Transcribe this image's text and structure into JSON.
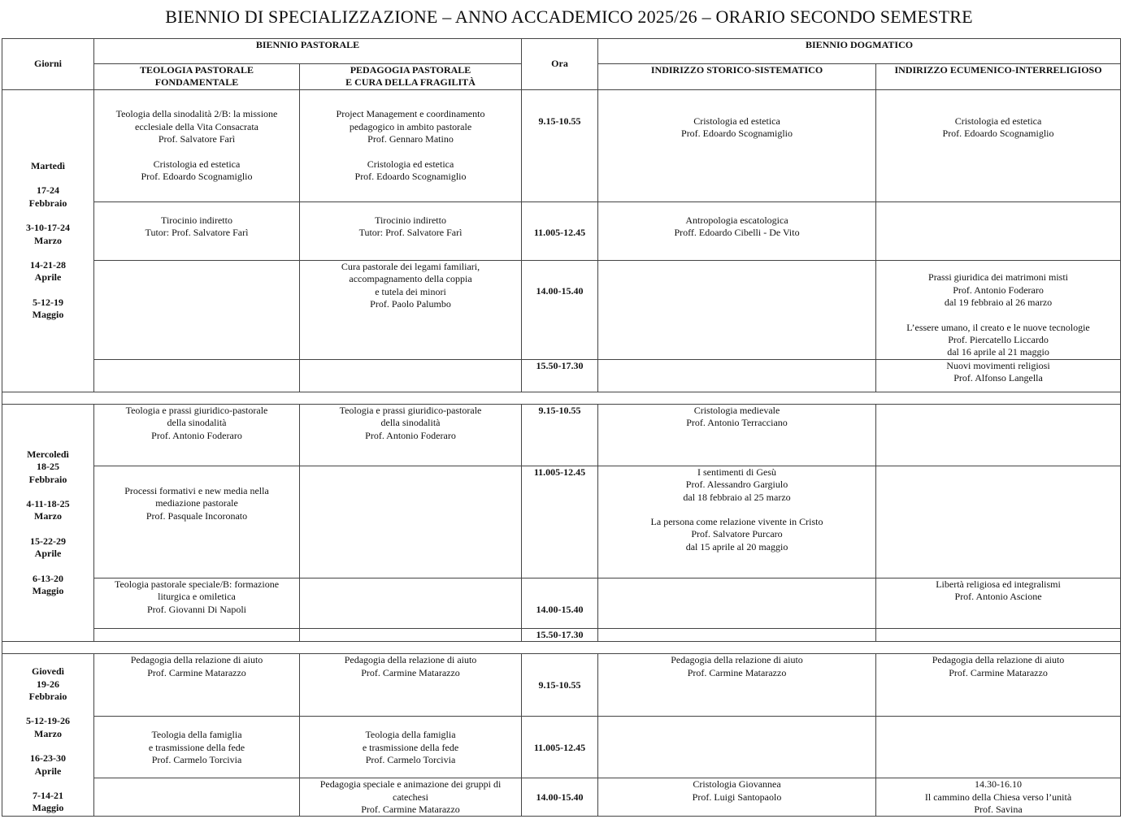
{
  "title": "BIENNIO DI SPECIALIZZAZIONE – ANNO ACCADEMICO 2025/26 – ORARIO SECONDO SEMESTRE",
  "header": {
    "giorni": "Giorni",
    "ora": "Ora",
    "pastorale": "BIENNIO PASTORALE",
    "dogmatico": "BIENNIO DOGMATICO",
    "col1": [
      "TEOLOGIA PASTORALE",
      "FONDAMENTALE"
    ],
    "col2": [
      "PEDAGOGIA PASTORALE",
      "E CURA DELLA FRAGILITÀ"
    ],
    "col3": "INDIRIZZO STORICO-SISTEMATICO",
    "col4": "INDIRIZZO ECUMENICO-INTERRELIGIOSO"
  },
  "days": {
    "martedi": [
      "Martedì",
      "",
      "17-24",
      "Febbraio",
      "",
      "3-10-17-24",
      "Marzo",
      "",
      "14-21-28",
      "Aprile",
      "",
      "5-12-19",
      "Maggio"
    ],
    "mercoledi": [
      "Mercoledì",
      "18-25",
      "Febbraio",
      "",
      "4-11-18-25",
      "Marzo",
      "",
      "15-22-29",
      "Aprile",
      "",
      "6-13-20",
      "Maggio"
    ],
    "giovedi": [
      "Giovedì",
      "19-26",
      "Febbraio",
      "",
      "5-12-19-26",
      "Marzo",
      "",
      "16-23-30",
      "Aprile",
      "",
      "7-14-21",
      "Maggio"
    ]
  },
  "times": {
    "t1": "9.15-10.55",
    "t2": "11.005-12.45",
    "t3": "14.00-15.40",
    "t4": "15.50-17.30"
  },
  "martedi": {
    "r1c1": [
      "Teologia della sinodalità 2/B: la missione",
      "ecclesiale della Vita Consacrata",
      "Prof. Salvatore Farì",
      "",
      "Cristologia ed estetica",
      "Prof. Edoardo Scognamiglio"
    ],
    "r1c2": [
      "Project Management e coordinamento",
      "pedagogico in ambito pastorale",
      "Prof. Gennaro Matino",
      "",
      "Cristologia ed estetica",
      "Prof. Edoardo Scognamiglio"
    ],
    "r1c3": [
      "Cristologia ed estetica",
      "Prof. Edoardo Scognamiglio"
    ],
    "r1c4": [
      "Cristologia ed estetica",
      "Prof. Edoardo Scognamiglio"
    ],
    "r2c1": [
      "Tirocinio indiretto",
      "Tutor: Prof. Salvatore Farì"
    ],
    "r2c2": [
      "Tirocinio indiretto",
      "Tutor: Prof. Salvatore Farì"
    ],
    "r2c3": [
      "Antropologia escatologica",
      "Proff. Edoardo Cibelli - De Vito"
    ],
    "r3c2": [
      "Cura pastorale dei legami familiari,",
      "accompagnamento della coppia",
      "e tutela dei minori",
      "Prof. Paolo Palumbo"
    ],
    "r3c4": [
      "Prassi giuridica dei matrimoni misti",
      "Prof. Antonio Foderaro",
      "dal 19 febbraio al 26 marzo",
      "",
      "L’essere umano, il creato e le nuove tecnologie",
      "Prof. Piercatello Liccardo",
      "dal 16 aprile al 21 maggio"
    ],
    "r4c4": [
      "Nuovi movimenti religiosi",
      "Prof. Alfonso Langella"
    ]
  },
  "mercoledi": {
    "r1c1": [
      "Teologia e prassi giuridico-pastorale",
      "della sinodalità",
      "Prof. Antonio Foderaro"
    ],
    "r1c2": [
      "Teologia e prassi giuridico-pastorale",
      "della sinodalità",
      "Prof. Antonio Foderaro"
    ],
    "r1c3": [
      "Cristologia medievale",
      "Prof. Antonio Terracciano"
    ],
    "r2c1": [
      "Processi formativi e new media nella",
      "mediazione pastorale",
      "Prof. Pasquale Incoronato"
    ],
    "r2c3": [
      "I sentimenti di Gesù",
      "Prof. Alessandro Gargiulo",
      "dal 18 febbraio al 25 marzo",
      "",
      "La persona come relazione vivente in Cristo",
      "Prof. Salvatore Purcaro",
      "dal 15 aprile al 20 maggio"
    ],
    "r3c1": [
      "Teologia pastorale speciale/B: formazione",
      "liturgica e omiletica",
      "Prof. Giovanni Di Napoli"
    ],
    "r3c4": [
      "Libertà religiosa ed integralismi",
      "Prof. Antonio Ascione"
    ]
  },
  "giovedi": {
    "r1c1": [
      "Pedagogia della relazione di aiuto",
      "Prof. Carmine Matarazzo"
    ],
    "r1c2": [
      "Pedagogia della relazione di aiuto",
      "Prof. Carmine Matarazzo"
    ],
    "r1c3": [
      "Pedagogia della relazione di aiuto",
      "Prof. Carmine Matarazzo"
    ],
    "r1c4": [
      "Pedagogia della relazione di aiuto",
      "Prof. Carmine Matarazzo"
    ],
    "r2c1": [
      "Teologia della famiglia",
      "e trasmissione della fede",
      "Prof. Carmelo Torcivia"
    ],
    "r2c2": [
      "Teologia della famiglia",
      "e trasmissione della fede",
      "Prof. Carmelo Torcivia"
    ],
    "r3c2": [
      "Pedagogia speciale e animazione dei gruppi di",
      "catechesi",
      "Prof. Carmine Matarazzo"
    ],
    "r3c3": [
      "Cristologia Giovannea",
      "Prof. Luigi Santopaolo"
    ],
    "r3c4": [
      "14.30-16.10",
      "Il cammino della Chiesa verso l’unità",
      "Prof. Savina"
    ]
  }
}
